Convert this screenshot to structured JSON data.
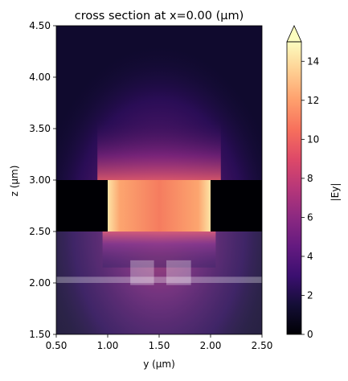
{
  "chart_data": {
    "type": "heatmap",
    "title": "cross section at x=0.00 (μm)",
    "xlabel": "y (μm)",
    "ylabel": "z (μm)",
    "xlim": [
      0.5,
      2.5
    ],
    "ylim": [
      1.5,
      4.5
    ],
    "xticks": [
      "0.50",
      "1.00",
      "1.50",
      "2.00",
      "2.50"
    ],
    "xtick_values": [
      0.5,
      1.0,
      1.5,
      2.0,
      2.5
    ],
    "yticks": [
      "1.50",
      "2.00",
      "2.50",
      "3.00",
      "3.50",
      "4.00",
      "4.50"
    ],
    "ytick_values": [
      1.5,
      2.0,
      2.5,
      3.0,
      3.5,
      4.0,
      4.5
    ],
    "colormap": "magma",
    "colorbar": {
      "label": "|Ey|",
      "range": [
        0,
        15
      ],
      "ticks": [
        "0",
        "2",
        "4",
        "6",
        "8",
        "10",
        "12",
        "14"
      ],
      "tick_values": [
        0,
        2,
        4,
        6,
        8,
        10,
        12,
        14
      ],
      "extend": "max"
    },
    "field_region": {
      "y": [
        1.0,
        2.0
      ],
      "z": [
        2.5,
        3.0
      ],
      "peak": 15
    },
    "overlay": {
      "slab": {
        "y": [
          0.5,
          2.5
        ],
        "z": [
          1.5,
          2.5
        ]
      },
      "rail": {
        "y": [
          0.5,
          2.5
        ],
        "z": [
          2.0,
          2.06
        ]
      },
      "ridges": [
        {
          "y": [
            1.22,
            1.45
          ],
          "z": [
            1.98,
            2.22
          ]
        },
        {
          "y": [
            1.57,
            1.81
          ],
          "z": [
            1.98,
            2.22
          ]
        }
      ]
    }
  }
}
